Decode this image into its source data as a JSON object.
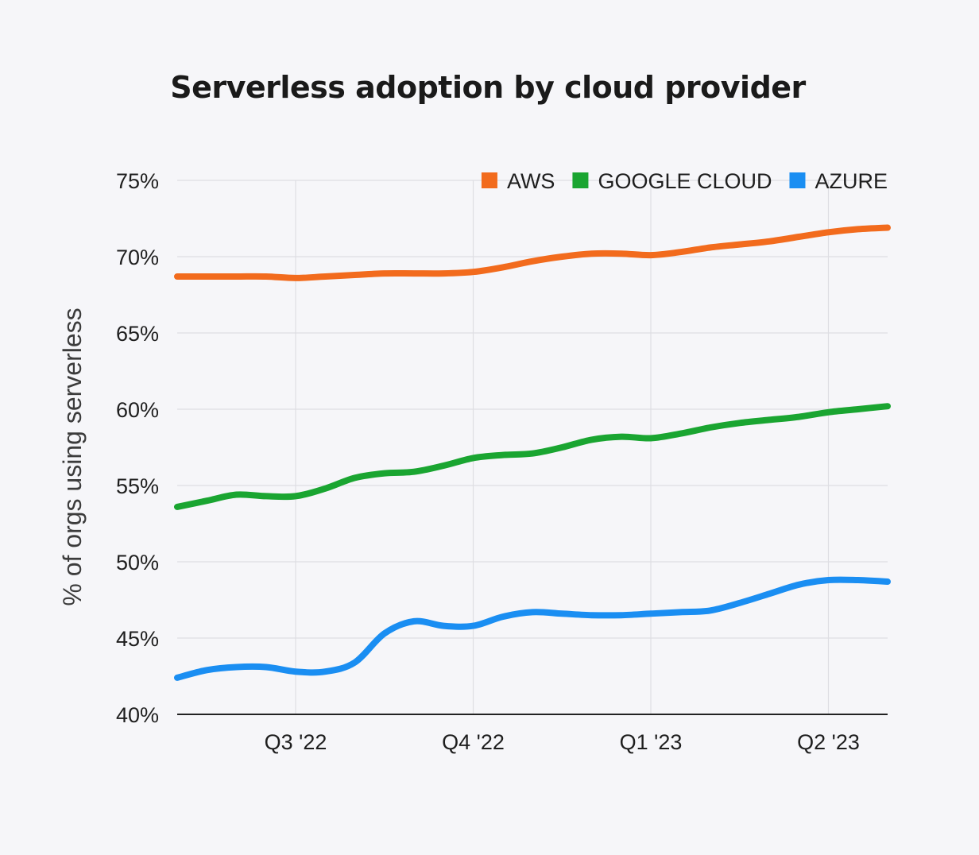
{
  "colors": {
    "background": "#f6f6f9",
    "grid": "#dedee3",
    "axis": "#222222"
  },
  "chart_data": {
    "type": "line",
    "title": "Serverless adoption by cloud provider",
    "ylabel": "% of orgs using serverless",
    "xlabel": "",
    "ylim": [
      40,
      75
    ],
    "y_ticks": [
      40,
      45,
      50,
      55,
      60,
      65,
      70,
      75
    ],
    "y_tick_labels": [
      "40%",
      "45%",
      "50%",
      "55%",
      "60%",
      "65%",
      "70%",
      "75%"
    ],
    "x_ticks": [
      {
        "label": "Q3 '22",
        "x": 2
      },
      {
        "label": "Q4 '22",
        "x": 5
      },
      {
        "label": "Q1 '23",
        "x": 8
      },
      {
        "label": "Q2 '23",
        "x": 11
      }
    ],
    "xlim": [
      0,
      12
    ],
    "grid": true,
    "legend_position": "top-right",
    "x": [
      0,
      0.5,
      1,
      1.5,
      2,
      2.5,
      3,
      3.5,
      4,
      4.5,
      5,
      5.5,
      6,
      6.5,
      7,
      7.5,
      8,
      8.5,
      9,
      9.5,
      10,
      10.5,
      11,
      11.5,
      12
    ],
    "series": [
      {
        "name": "AWS",
        "color": "#f26b1d",
        "values": [
          68.7,
          68.7,
          68.7,
          68.7,
          68.6,
          68.7,
          68.8,
          68.9,
          68.9,
          68.9,
          69.0,
          69.3,
          69.7,
          70.0,
          70.2,
          70.2,
          70.1,
          70.3,
          70.6,
          70.8,
          71.0,
          71.3,
          71.6,
          71.8,
          71.9
        ]
      },
      {
        "name": "GOOGLE CLOUD",
        "color": "#1aa531",
        "values": [
          53.6,
          54.0,
          54.4,
          54.3,
          54.3,
          54.8,
          55.5,
          55.8,
          55.9,
          56.3,
          56.8,
          57.0,
          57.1,
          57.5,
          58.0,
          58.2,
          58.1,
          58.4,
          58.8,
          59.1,
          59.3,
          59.5,
          59.8,
          60.0,
          60.2
        ]
      },
      {
        "name": "AZURE",
        "color": "#1a8ef2",
        "values": [
          42.4,
          42.9,
          43.1,
          43.1,
          42.8,
          42.8,
          43.4,
          45.3,
          46.1,
          45.8,
          45.8,
          46.4,
          46.7,
          46.6,
          46.5,
          46.5,
          46.6,
          46.7,
          46.8,
          47.3,
          47.9,
          48.5,
          48.8,
          48.8,
          48.7
        ]
      }
    ]
  }
}
